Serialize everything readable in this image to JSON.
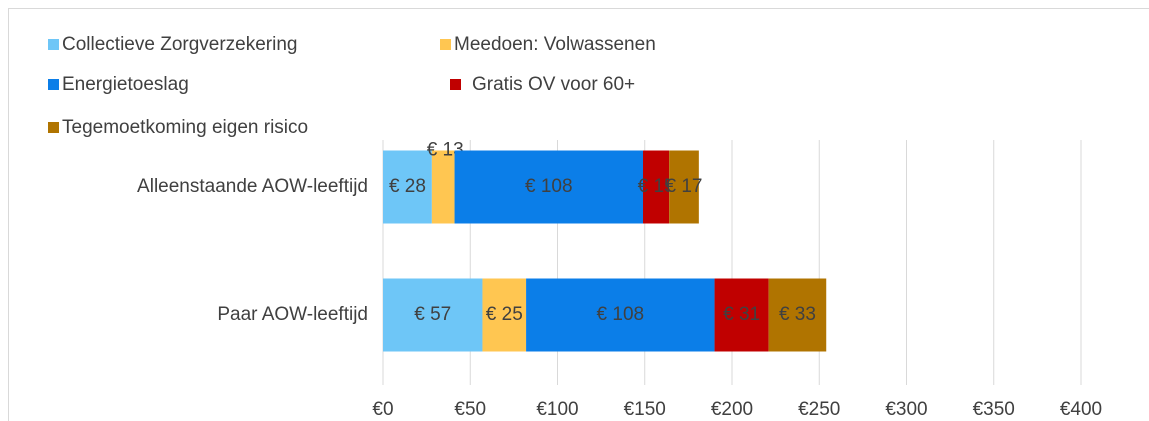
{
  "chart_data": {
    "type": "stacked_barh",
    "categories": [
      "Alleenstaande AOW-leeftijd",
      "Paar AOW-leeftijd"
    ],
    "series": [
      {
        "name": "Collectieve Zorgverzekering",
        "color": "#6ec6f7",
        "values": [
          28,
          57
        ],
        "value_labels": [
          "€ 28",
          "€ 57"
        ]
      },
      {
        "name": "Meedoen: Volwassenen",
        "color": "#ffc651",
        "values": [
          13,
          25
        ],
        "value_labels": [
          "€ 13",
          "€ 25"
        ]
      },
      {
        "name": "Energietoeslag",
        "color": "#0b7ee8",
        "values": [
          108,
          108
        ],
        "value_labels": [
          "€ 108",
          "€ 108"
        ]
      },
      {
        "name": "Gratis OV voor 60+",
        "color": "#c00000",
        "values": [
          15,
          31
        ],
        "value_labels": [
          "€ 15",
          "€ 31"
        ]
      },
      {
        "name": "Tegemoetkoming eigen risico",
        "color": "#b07400",
        "values": [
          17,
          33
        ],
        "value_labels": [
          "€ 17",
          "€ 33"
        ]
      }
    ],
    "xlim": [
      0,
      400
    ],
    "xticks": [
      {
        "value": 0,
        "label": "€0"
      },
      {
        "value": 50,
        "label": "€50"
      },
      {
        "value": 100,
        "label": "€100"
      },
      {
        "value": 150,
        "label": "€150"
      },
      {
        "value": 200,
        "label": "€200"
      },
      {
        "value": 250,
        "label": "€250"
      },
      {
        "value": 300,
        "label": "€300"
      },
      {
        "value": 350,
        "label": "€350"
      },
      {
        "value": 400,
        "label": "€400"
      }
    ],
    "grid": true
  }
}
